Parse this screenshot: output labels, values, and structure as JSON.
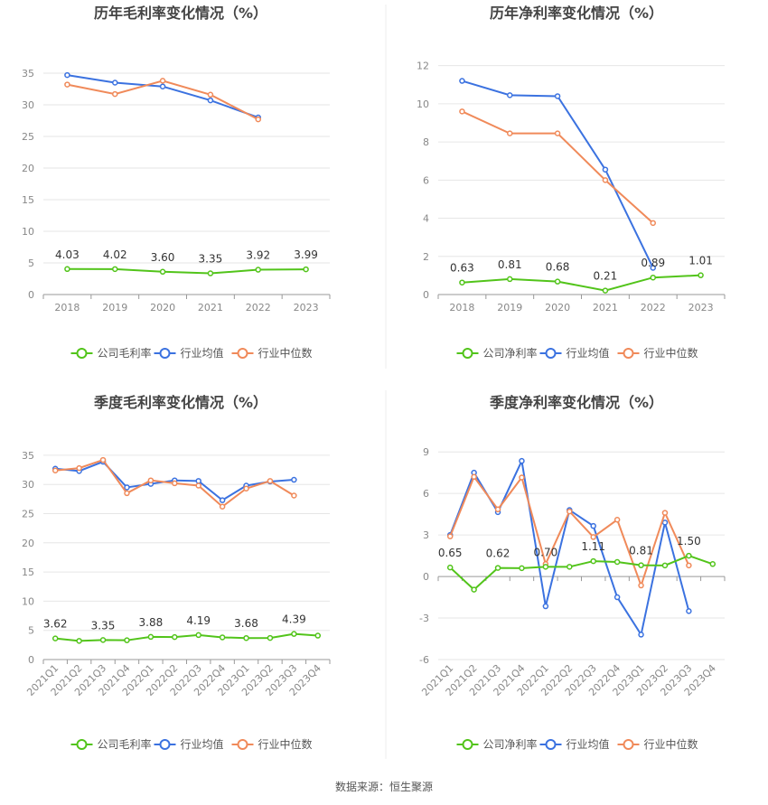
{
  "source_text": "数据来源：恒生聚源",
  "colors": {
    "company": "#52c41a",
    "industry_avg": "#3b72e0",
    "industry_median": "#f08a5a",
    "grid": "#e6e6e6",
    "axis": "#999999",
    "tick_text": "#888888",
    "title_text": "#444444",
    "label_text": "#333333",
    "divider": "#eeeeee"
  },
  "chart_data": [
    {
      "type": "line",
      "title": "历年毛利率变化情况（%）",
      "categories": [
        "2018",
        "2019",
        "2020",
        "2021",
        "2022",
        "2023"
      ],
      "yticks": [
        0,
        5,
        10,
        15,
        20,
        25,
        30,
        35
      ],
      "ylim": [
        0,
        38
      ],
      "grid": true,
      "legend_position": "bottom",
      "series": [
        {
          "name": "公司毛利率",
          "color_key": "company",
          "values": [
            4.03,
            4.02,
            3.6,
            3.35,
            3.92,
            3.99
          ],
          "labels": [
            "4.03",
            "4.02",
            "3.60",
            "3.35",
            "3.92",
            "3.99"
          ]
        },
        {
          "name": "行业均值",
          "color_key": "industry_avg",
          "values": [
            34.7,
            33.5,
            32.9,
            30.7,
            28.0,
            null
          ]
        },
        {
          "name": "行业中位数",
          "color_key": "industry_median",
          "values": [
            33.2,
            31.7,
            33.8,
            31.6,
            27.7,
            null
          ]
        }
      ]
    },
    {
      "type": "line",
      "title": "历年净利率变化情况（%）",
      "categories": [
        "2018",
        "2019",
        "2020",
        "2021",
        "2022",
        "2023"
      ],
      "yticks": [
        0,
        2,
        4,
        6,
        8,
        10,
        12
      ],
      "ylim": [
        0,
        12.6
      ],
      "grid": true,
      "legend_position": "bottom",
      "series": [
        {
          "name": "公司净利率",
          "color_key": "company",
          "values": [
            0.63,
            0.81,
            0.68,
            0.21,
            0.89,
            1.01
          ],
          "labels": [
            "0.63",
            "0.81",
            "0.68",
            "0.21",
            "0.89",
            "1.01"
          ]
        },
        {
          "name": "行业均值",
          "color_key": "industry_avg",
          "values": [
            11.2,
            10.45,
            10.4,
            6.55,
            1.4,
            null
          ]
        },
        {
          "name": "行业中位数",
          "color_key": "industry_median",
          "values": [
            9.6,
            8.45,
            8.45,
            6.0,
            3.75,
            null
          ]
        }
      ]
    },
    {
      "type": "line",
      "title": "季度毛利率变化情况（%）",
      "categories": [
        "2021Q1",
        "2021Q2",
        "2021Q3",
        "2021Q4",
        "2022Q1",
        "2022Q2",
        "2022Q3",
        "2022Q4",
        "2023Q1",
        "2023Q2",
        "2023Q3",
        "2023Q4"
      ],
      "yticks": [
        0,
        5,
        10,
        15,
        20,
        25,
        30,
        35
      ],
      "ylim": [
        0,
        37
      ],
      "grid": true,
      "legend_position": "bottom",
      "rotate_xticks": true,
      "series": [
        {
          "name": "公司毛利率",
          "color_key": "company",
          "values": [
            3.62,
            3.2,
            3.35,
            3.3,
            3.88,
            3.85,
            4.19,
            3.8,
            3.68,
            3.7,
            4.39,
            4.1
          ],
          "labels": [
            "3.62",
            "",
            "3.35",
            "",
            "3.88",
            "",
            "4.19",
            "",
            "3.68",
            "",
            "4.39",
            ""
          ]
        },
        {
          "name": "行业均值",
          "color_key": "industry_avg",
          "values": [
            32.7,
            32.3,
            33.9,
            29.5,
            30.1,
            30.7,
            30.6,
            27.3,
            29.8,
            30.5,
            30.8,
            null
          ]
        },
        {
          "name": "行业中位数",
          "color_key": "industry_median",
          "values": [
            32.4,
            32.8,
            34.2,
            28.5,
            30.7,
            30.2,
            29.8,
            26.2,
            29.3,
            30.6,
            28.1,
            null
          ]
        }
      ]
    },
    {
      "type": "line",
      "title": "季度净利率变化情况（%）",
      "categories": [
        "2021Q1",
        "2021Q2",
        "2021Q3",
        "2021Q4",
        "2022Q1",
        "2022Q2",
        "2022Q3",
        "2022Q4",
        "2023Q1",
        "2023Q2",
        "2023Q3",
        "2023Q4"
      ],
      "yticks": [
        -6,
        -3,
        0,
        3,
        6,
        9
      ],
      "ylim": [
        -6,
        9.6
      ],
      "grid": true,
      "legend_position": "bottom",
      "rotate_xticks": true,
      "series": [
        {
          "name": "公司净利率",
          "color_key": "company",
          "values": [
            0.65,
            -0.95,
            0.62,
            0.6,
            0.7,
            0.7,
            1.11,
            1.05,
            0.81,
            0.8,
            1.5,
            0.9
          ],
          "labels": [
            "0.65",
            "",
            "0.62",
            "",
            "0.70",
            "",
            "1.11",
            "",
            "0.81",
            "",
            "1.50",
            ""
          ]
        },
        {
          "name": "行业均值",
          "color_key": "industry_avg",
          "values": [
            3.0,
            7.5,
            4.65,
            8.35,
            -2.15,
            4.8,
            3.65,
            -1.5,
            -4.2,
            3.9,
            -2.5,
            null
          ]
        },
        {
          "name": "行业中位数",
          "color_key": "industry_median",
          "values": [
            2.9,
            7.2,
            4.85,
            7.15,
            0.9,
            4.7,
            2.85,
            4.1,
            -0.65,
            4.6,
            0.8,
            null
          ]
        }
      ]
    }
  ]
}
